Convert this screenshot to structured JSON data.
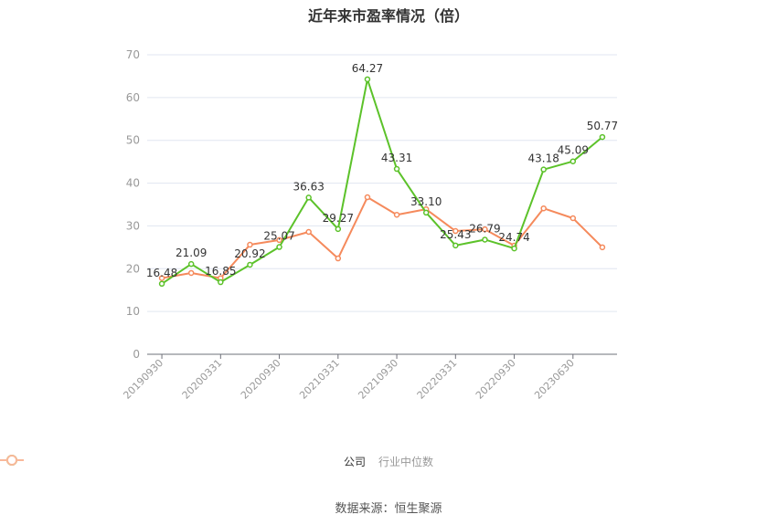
{
  "title": "近年来市盈率情况（倍）",
  "source": "数据来源：恒生聚源",
  "colors": {
    "company": "#5cc22a",
    "industry": "#f58a5c",
    "grid": "#e0e6f1",
    "axis": "#6e7079",
    "tick_label": "#999999"
  },
  "legend": [
    {
      "label": "公司",
      "color": "#5cc22a"
    },
    {
      "label": "行业中位数",
      "color": "#f9b89a"
    }
  ],
  "chart_data": {
    "type": "line",
    "title": "近年来市盈率情况（倍）",
    "xlabel": "",
    "ylabel": "",
    "ylim": [
      0,
      70
    ],
    "yticks": [
      0,
      10,
      20,
      30,
      40,
      50,
      60,
      70
    ],
    "grid": true,
    "legend_position": "bottom",
    "x": [
      "20190930",
      "20191231",
      "20200331",
      "20200630",
      "20200930",
      "20201231",
      "20210331",
      "20210630",
      "20210930",
      "20211231",
      "20220331",
      "20220630",
      "20220930",
      "20221231",
      "20230630",
      "20230930"
    ],
    "x_tick_labels": [
      "20190930",
      "20200331",
      "20200930",
      "20210331",
      "20210930",
      "20220331",
      "20220930",
      "20230630"
    ],
    "series": [
      {
        "name": "公司",
        "values": [
          16.48,
          21.09,
          16.85,
          20.92,
          25.07,
          36.63,
          29.27,
          64.27,
          43.31,
          33.1,
          25.43,
          26.79,
          24.74,
          43.18,
          45.09,
          50.77
        ],
        "labels_shown": true
      },
      {
        "name": "行业中位数",
        "values": [
          17.8,
          19.0,
          17.8,
          25.6,
          26.7,
          28.6,
          22.4,
          36.7,
          32.6,
          33.9,
          28.8,
          29.2,
          25.4,
          34.1,
          31.8,
          25.0
        ],
        "labels_shown": false
      }
    ]
  }
}
